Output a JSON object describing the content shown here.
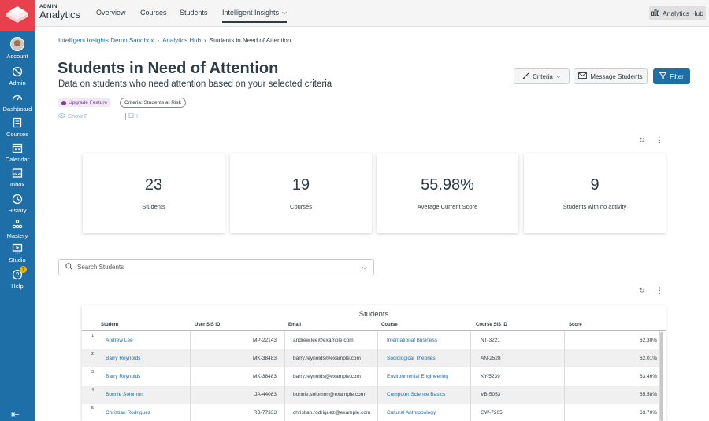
{
  "nav": {
    "items": [
      {
        "label": "Account",
        "icon": "avatar"
      },
      {
        "label": "Admin",
        "icon": "shield-icon"
      },
      {
        "label": "Dashboard",
        "icon": "dashboard-icon"
      },
      {
        "label": "Courses",
        "icon": "book-icon"
      },
      {
        "label": "Calendar",
        "icon": "calendar-icon"
      },
      {
        "label": "Inbox",
        "icon": "inbox-icon"
      },
      {
        "label": "History",
        "icon": "clock-icon"
      },
      {
        "label": "Mastery",
        "icon": "mastery-icon"
      },
      {
        "label": "Studio",
        "icon": "studio-icon"
      },
      {
        "label": "Help",
        "icon": "help-icon"
      }
    ],
    "help_badge": "7"
  },
  "topbar": {
    "brand_small": "ADMIN",
    "brand_big": "Analytics",
    "tabs": [
      "Overview",
      "Courses",
      "Students",
      "Intelligent Insights"
    ],
    "hub_button": "Analytics Hub"
  },
  "breadcrumb": [
    "Intelligent Insights Demo Sandbox",
    "Analytics Hub",
    "Students in Need of Attention"
  ],
  "page": {
    "title": "Students in Need of Attention",
    "subtitle": "Data on students who need attention based on your selected criteria",
    "upgrade_pill": "Upgrade Feature",
    "criteria_pill": "Criteria: Students at Risk",
    "show_link": "Show F",
    "trash_text": "I"
  },
  "buttons": {
    "criteria": "Criteria",
    "message": "Message Students",
    "filter": "Filter"
  },
  "stats": [
    {
      "value": "23",
      "label": "Students"
    },
    {
      "value": "19",
      "label": "Courses"
    },
    {
      "value": "55.98%",
      "label": "Average Current Score"
    },
    {
      "value": "9",
      "label": "Students with no activity"
    }
  ],
  "search": {
    "placeholder": "Search Students"
  },
  "table": {
    "title": "Students",
    "columns": [
      "Student",
      "User SIS ID",
      "Email",
      "Course",
      "Course SIS ID",
      "Score"
    ],
    "rows": [
      {
        "n": "1",
        "student": "Andrew Lee",
        "sis": "MP-22143",
        "email": "andrew.lee@example.com",
        "course": "International Business",
        "course_sis": "NT-3221",
        "score": "62.30%"
      },
      {
        "n": "2",
        "student": "Barry Reynolds",
        "sis": "MK-38483",
        "email": "barry.reynolds@example.com",
        "course": "Sociological Theories",
        "course_sis": "AN-2528",
        "score": "62.01%"
      },
      {
        "n": "3",
        "student": "Barry Reynolds",
        "sis": "MK-38483",
        "email": "barry.reynolds@example.com",
        "course": "Environmental Engineering",
        "course_sis": "KY-5239",
        "score": "63.46%"
      },
      {
        "n": "4",
        "student": "Bonnie Solomon",
        "sis": "JA-44083",
        "email": "bonnie.solomon@example.com",
        "course": "Computer Science Basics",
        "course_sis": "VB-5053",
        "score": "65.58%"
      },
      {
        "n": "5",
        "student": "Christian Rodriguez",
        "sis": "RB-77333",
        "email": "christian.rodriguez@example.com",
        "course": "Cultural Anthropology",
        "course_sis": "GW-7205",
        "score": "63.70%"
      }
    ]
  },
  "colors": {
    "sidebar": "#1e6ea7",
    "logo": "#e8414e",
    "accent": "#1e6ea7",
    "upgrade": "#7c3aa0"
  }
}
